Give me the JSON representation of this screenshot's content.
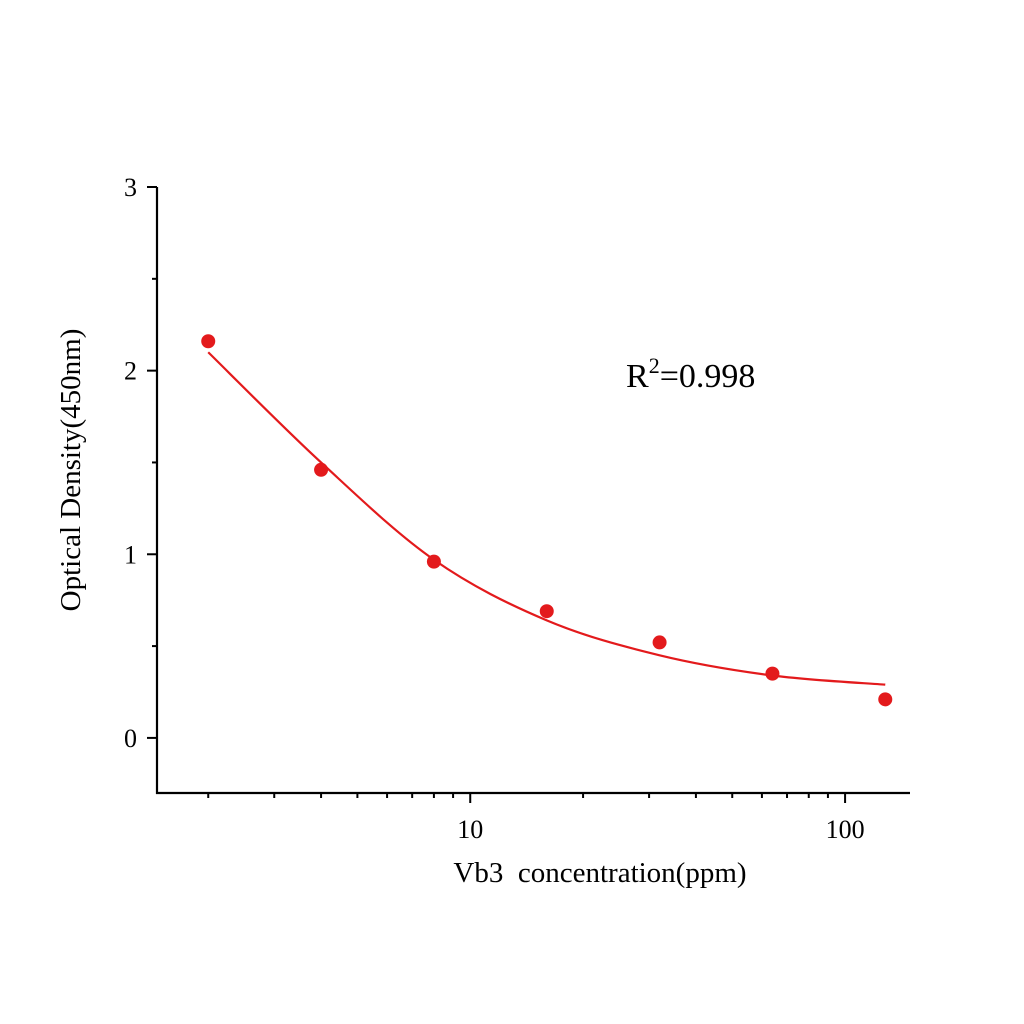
{
  "chart_data": {
    "type": "scatter",
    "title": "",
    "xlabel": "Vb3  concentration(ppm)",
    "ylabel": "Optical Density(450nm)",
    "x_scale": "log",
    "xlim": [
      1.46,
      149
    ],
    "ylim": [
      -0.3,
      3
    ],
    "grid": false,
    "x_tick_labels": [
      "10",
      "100"
    ],
    "x_ticks": [
      10,
      100
    ],
    "y_tick_labels": [
      "0",
      "1",
      "2",
      "3"
    ],
    "y_ticks": [
      0,
      1,
      2,
      3
    ],
    "annotation": {
      "base": "R",
      "sup": "2",
      "rest": "=0.998"
    },
    "color": "#e31a1c",
    "series": [
      {
        "kind": "points",
        "x": [
          2,
          4,
          8,
          16,
          32,
          64,
          128
        ],
        "y": [
          2.16,
          1.46,
          0.96,
          0.69,
          0.52,
          0.35,
          0.21
        ]
      },
      {
        "kind": "fit-curve",
        "x": [
          2,
          4,
          8,
          16,
          32,
          64,
          128
        ],
        "y": [
          2.1,
          1.5,
          0.97,
          0.64,
          0.45,
          0.34,
          0.29
        ]
      }
    ]
  }
}
